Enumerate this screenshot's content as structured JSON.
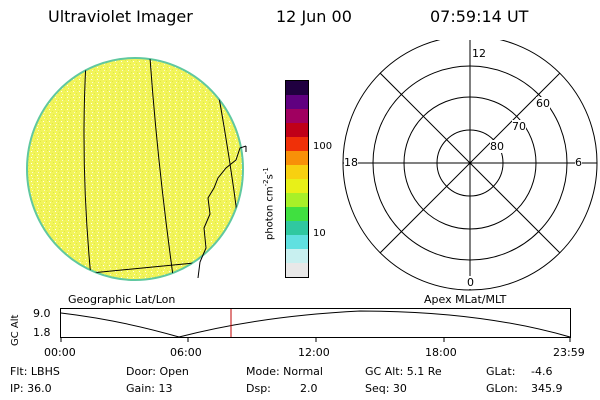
{
  "header": {
    "title": "Ultraviolet Imager",
    "date": "12 Jun 00",
    "time": "07:59:14 UT"
  },
  "colorbar": {
    "unit_label": "photon cm",
    "unit_exp1": "-2",
    "unit_mid": "s",
    "unit_exp2": "-1",
    "tick_100": "100",
    "tick_10": "10",
    "colors": [
      "#e8e8e8",
      "#c8f0f0",
      "#60e0e0",
      "#30c8a0",
      "#40e040",
      "#a8f028",
      "#e8f018",
      "#f8d010",
      "#f89008",
      "#f03008",
      "#c00018",
      "#a00060",
      "#600080",
      "#200040"
    ]
  },
  "left_panel": {
    "label": "Geographic Lat/Lon",
    "disk_color": "#f0f460"
  },
  "right_panel": {
    "label": "Apex MLat/MLT",
    "mlt": {
      "top": "12",
      "right": "6",
      "bottom": "0",
      "left": "18"
    },
    "lat": {
      "l60": "60",
      "l70": "70",
      "l80": "80"
    }
  },
  "timeline": {
    "ylabel": "GC Alt",
    "ytick_top": "9.0",
    "ytick_bottom": "1.8",
    "x_ticks": [
      "00:00",
      "06:00",
      "12:00",
      "18:00",
      "23:59"
    ],
    "marker_color": "#c00000"
  },
  "status": {
    "flt": "Flt: LBHS",
    "ip": "IP: 36.0",
    "door": "Door: Open",
    "gain": "Gain: 13",
    "mode": "Mode: Normal",
    "dsp_label": "Dsp:",
    "dsp_value": "2.0",
    "gc_alt": "GC Alt: 5.1 Re",
    "seq": "Seq: 30",
    "glat_label": "GLat:",
    "glat_value": "-4.6",
    "glon_label": "GLon:",
    "glon_value": "345.9"
  }
}
